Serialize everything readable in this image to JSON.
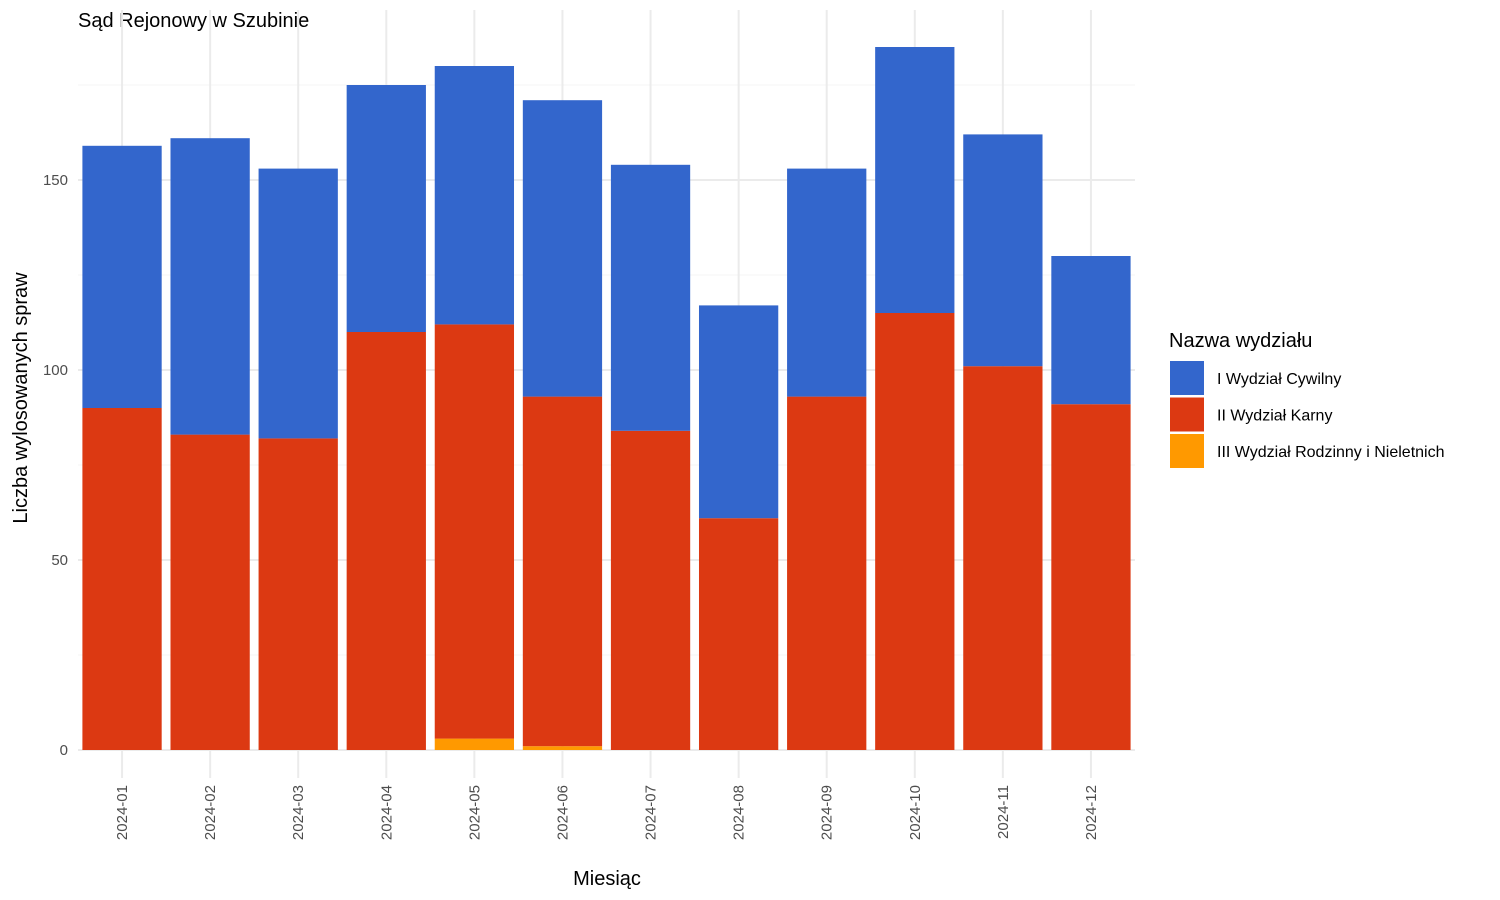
{
  "chart_data": {
    "type": "bar",
    "stacked": true,
    "title": "Sąd Rejonowy w Szubinie",
    "xlabel": "Miesiąc",
    "ylabel": "Liczba wylosowanych spraw",
    "ylim": [
      0,
      190
    ],
    "yticks": [
      0,
      50,
      100,
      150
    ],
    "grid": true,
    "legend_position": "right",
    "legend_title": "Nazwa wydziału",
    "categories": [
      "2024-01",
      "2024-02",
      "2024-03",
      "2024-04",
      "2024-05",
      "2024-06",
      "2024-07",
      "2024-08",
      "2024-09",
      "2024-10",
      "2024-11",
      "2024-12"
    ],
    "series": [
      {
        "name": "I Wydział Cywilny",
        "color": "#3366CC",
        "values": [
          69,
          78,
          71,
          65,
          68,
          78,
          70,
          56,
          60,
          70,
          61,
          39
        ]
      },
      {
        "name": "II Wydział Karny",
        "color": "#DC3912",
        "values": [
          90,
          83,
          82,
          110,
          109,
          92,
          84,
          61,
          93,
          115,
          101,
          91
        ]
      },
      {
        "name": "III Wydział Rodzinny i Nieletnich",
        "color": "#FF9900",
        "values": [
          0,
          0,
          0,
          0,
          3,
          1,
          0,
          0,
          0,
          0,
          0,
          0
        ]
      }
    ]
  }
}
